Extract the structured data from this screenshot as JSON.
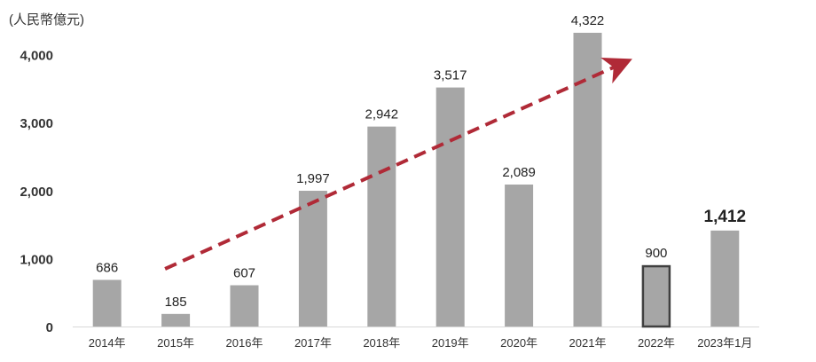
{
  "chart_data": {
    "type": "bar",
    "ylabel": "(人民幣億元)",
    "categories": [
      "2014年",
      "2015年",
      "2016年",
      "2017年",
      "2018年",
      "2019年",
      "2020年",
      "2021年",
      "2022年",
      "2023年1月"
    ],
    "values": [
      686,
      185,
      607,
      1997,
      2942,
      3517,
      2089,
      4322,
      900,
      1412
    ],
    "value_labels": [
      "686",
      "185",
      "607",
      "1,997",
      "2,942",
      "3,517",
      "2,089",
      "4,322",
      "900",
      "1,412"
    ],
    "yticks": [
      0,
      1000,
      2000,
      3000,
      4000
    ],
    "ytick_labels": [
      "0",
      "1,000",
      "2,000",
      "3,000",
      "4,000"
    ],
    "ylim": [
      0,
      4400
    ],
    "grid": false,
    "legend": "none",
    "outlined_bar": "2022年",
    "highlighted_label": "2023年1月",
    "trend_arrow": {
      "from_category": "2015年",
      "to_category": "2021年",
      "style": "dashed"
    },
    "colors": {
      "bar": "#a6a6a6",
      "bar_outline": "#404040",
      "arrow": "#b02a37",
      "highlight_label": "#b00f1a",
      "axis": "#d9d9d9"
    }
  }
}
